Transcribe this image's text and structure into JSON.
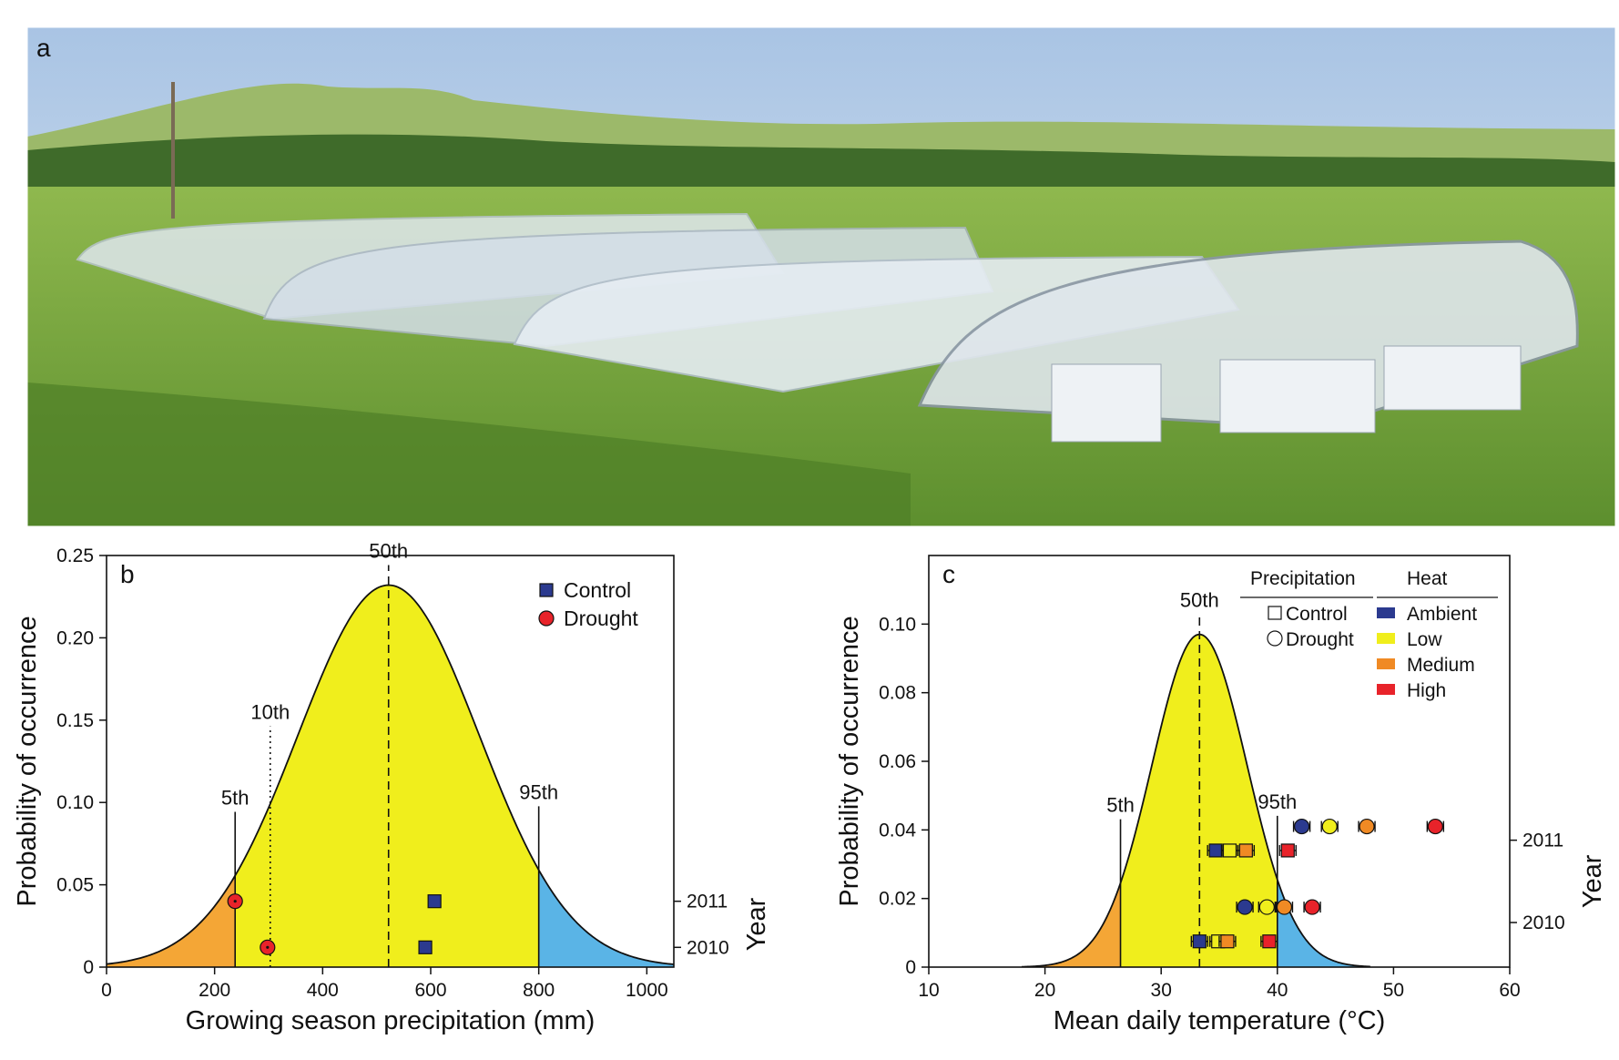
{
  "panel_a": {
    "label": "a",
    "photo_description_icon": "greenhouse-field-photo"
  },
  "chart_data": [
    {
      "type": "area",
      "panel_label": "b",
      "xlabel": "Growing season precipitation (mm)",
      "ylabel": "Probability of occurrence",
      "right_axis_label": "Year",
      "xlim": [
        0,
        1050
      ],
      "ylim": [
        0,
        0.25
      ],
      "x_ticks": [
        0,
        200,
        400,
        600,
        800,
        1000
      ],
      "y_ticks": [
        0,
        0.05,
        0.1,
        0.15,
        0.2,
        0.25
      ],
      "y_tick_labels": [
        "0",
        "0.05",
        "0.10",
        "0.15",
        "0.20",
        "0.25"
      ],
      "year_ticks": [
        {
          "label": "2011",
          "y": 0.04
        },
        {
          "label": "2010",
          "y": 0.012
        }
      ],
      "distribution": {
        "mean": 522,
        "sd": 168,
        "peak": 0.232,
        "xmin": 0,
        "xmax": 1050
      },
      "percentiles": [
        {
          "label": "5th",
          "x": 238,
          "style": "solid"
        },
        {
          "label": "10th",
          "x": 303,
          "style": "dotted"
        },
        {
          "label": "50th",
          "x": 522,
          "style": "dashed"
        },
        {
          "label": "95th",
          "x": 800,
          "style": "solid"
        }
      ],
      "fill_colors": {
        "low": "#f4a636",
        "mid": "#f0ee1c",
        "high": "#5ab4e6"
      },
      "legend": [
        {
          "label": "Control",
          "marker": "square",
          "color": "#2b3a8f"
        },
        {
          "label": "Drought",
          "marker": "circle",
          "color": "#e8232a"
        }
      ],
      "series": [
        {
          "name": "Control",
          "marker": "square",
          "color": "#2b3a8f",
          "points": [
            {
              "x": 607,
              "y": 0.04,
              "year": "2011"
            },
            {
              "x": 590,
              "y": 0.012,
              "year": "2010"
            }
          ]
        },
        {
          "name": "Drought",
          "marker": "circle",
          "color": "#e8232a",
          "points": [
            {
              "x": 238,
              "y": 0.04,
              "year": "2011"
            },
            {
              "x": 298,
              "y": 0.012,
              "year": "2010"
            }
          ]
        }
      ]
    },
    {
      "type": "area",
      "panel_label": "c",
      "xlabel": "Mean daily temperature (°C)",
      "ylabel": "Probability of occurrence",
      "right_axis_label": "Year",
      "xlim": [
        10,
        60
      ],
      "ylim": [
        0,
        0.12
      ],
      "x_ticks": [
        10,
        20,
        30,
        40,
        50,
        60
      ],
      "y_ticks": [
        0,
        0.02,
        0.04,
        0.06,
        0.08,
        0.1
      ],
      "y_tick_labels": [
        "0",
        "0.02",
        "0.04",
        "0.06",
        "0.08",
        "0.10"
      ],
      "year_ticks": [
        {
          "label": "2011",
          "y": 0.037
        },
        {
          "label": "2010",
          "y": 0.013
        }
      ],
      "distribution": {
        "mean": 33.3,
        "sd": 4.1,
        "peak": 0.097,
        "xmin": 18,
        "xmax": 48
      },
      "percentiles": [
        {
          "label": "5th",
          "x": 26.5,
          "style": "solid"
        },
        {
          "label": "50th",
          "x": 33.3,
          "style": "dashed"
        },
        {
          "label": "95th",
          "x": 40.0,
          "style": "solid"
        }
      ],
      "fill_colors": {
        "low": "#f4a636",
        "mid": "#f0ee1c",
        "high": "#5ab4e6"
      },
      "legend": {
        "precipitation_title": "Precipitation",
        "heat_title": "Heat",
        "precipitation": [
          {
            "label": "Control",
            "marker": "square"
          },
          {
            "label": "Drought",
            "marker": "circle"
          }
        ],
        "heat": [
          {
            "label": "Ambient",
            "color": "#2b3a8f"
          },
          {
            "label": "Low",
            "color": "#f0ee1c"
          },
          {
            "label": "Medium",
            "color": "#f08a24"
          },
          {
            "label": "High",
            "color": "#e8232a"
          }
        ]
      },
      "points": [
        {
          "marker": "circle",
          "heat": "Ambient",
          "x": 42.1,
          "y": 0.041,
          "year": "2011"
        },
        {
          "marker": "circle",
          "heat": "Low",
          "x": 44.5,
          "y": 0.041,
          "year": "2011"
        },
        {
          "marker": "circle",
          "heat": "Medium",
          "x": 47.7,
          "y": 0.041,
          "year": "2011"
        },
        {
          "marker": "circle",
          "heat": "High",
          "x": 53.6,
          "y": 0.041,
          "year": "2011"
        },
        {
          "marker": "square",
          "heat": "Ambient",
          "x": 34.7,
          "y": 0.034,
          "year": "2011"
        },
        {
          "marker": "square",
          "heat": "Low",
          "x": 35.9,
          "y": 0.034,
          "year": "2011"
        },
        {
          "marker": "square",
          "heat": "Medium",
          "x": 37.3,
          "y": 0.034,
          "year": "2011"
        },
        {
          "marker": "square",
          "heat": "High",
          "x": 40.9,
          "y": 0.034,
          "year": "2011"
        },
        {
          "marker": "circle",
          "heat": "Ambient",
          "x": 37.2,
          "y": 0.0175,
          "year": "2010"
        },
        {
          "marker": "circle",
          "heat": "Low",
          "x": 39.1,
          "y": 0.0175,
          "year": "2010"
        },
        {
          "marker": "circle",
          "heat": "Medium",
          "x": 40.6,
          "y": 0.0175,
          "year": "2010"
        },
        {
          "marker": "circle",
          "heat": "High",
          "x": 43.0,
          "y": 0.0175,
          "year": "2010"
        },
        {
          "marker": "square",
          "heat": "Ambient",
          "x": 33.3,
          "y": 0.0075,
          "year": "2010"
        },
        {
          "marker": "square",
          "heat": "Low",
          "x": 34.9,
          "y": 0.0075,
          "year": "2010"
        },
        {
          "marker": "square",
          "heat": "Medium",
          "x": 35.7,
          "y": 0.0075,
          "year": "2010"
        },
        {
          "marker": "square",
          "heat": "High",
          "x": 39.3,
          "y": 0.0075,
          "year": "2010"
        }
      ]
    }
  ]
}
